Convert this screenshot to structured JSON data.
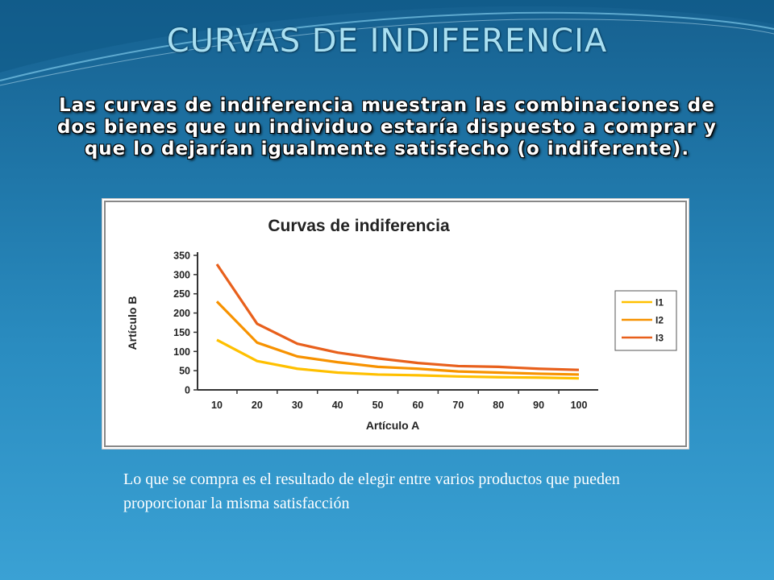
{
  "slide": {
    "title": "CURVAS DE INDIFERENCIA",
    "subtitle": "Las curvas de indiferencia muestran las combinaciones de dos bienes que un individuo estaría dispuesto a comprar y que lo dejarían igualmente satisfecho (o indiferente).",
    "caption": "Lo que se compra es el resultado de elegir entre varios productos que pueden proporcionar la misma satisfacción"
  },
  "chart_data": {
    "type": "line",
    "title": "Curvas de indiferencia",
    "xlabel": "Artículo A",
    "ylabel": "Artículo B",
    "x": [
      10,
      20,
      30,
      40,
      50,
      60,
      70,
      80,
      90,
      100
    ],
    "xticks": [
      "10",
      "20",
      "30",
      "40",
      "50",
      "60",
      "70",
      "80",
      "90",
      "100"
    ],
    "ylim": [
      0,
      350
    ],
    "yticks": [
      "0",
      "50",
      "100",
      "150",
      "200",
      "250",
      "300",
      "350"
    ],
    "grid": false,
    "legend_position": "right",
    "series": [
      {
        "name": "I1",
        "color": "#ffc000",
        "values": [
          130,
          75,
          55,
          45,
          40,
          38,
          35,
          33,
          32,
          30
        ]
      },
      {
        "name": "I2",
        "color": "#f79200",
        "values": [
          230,
          123,
          87,
          72,
          60,
          55,
          48,
          45,
          42,
          40
        ]
      },
      {
        "name": "I3",
        "color": "#e8601c",
        "values": [
          327,
          172,
          120,
          97,
          82,
          70,
          62,
          60,
          55,
          52
        ]
      }
    ]
  }
}
